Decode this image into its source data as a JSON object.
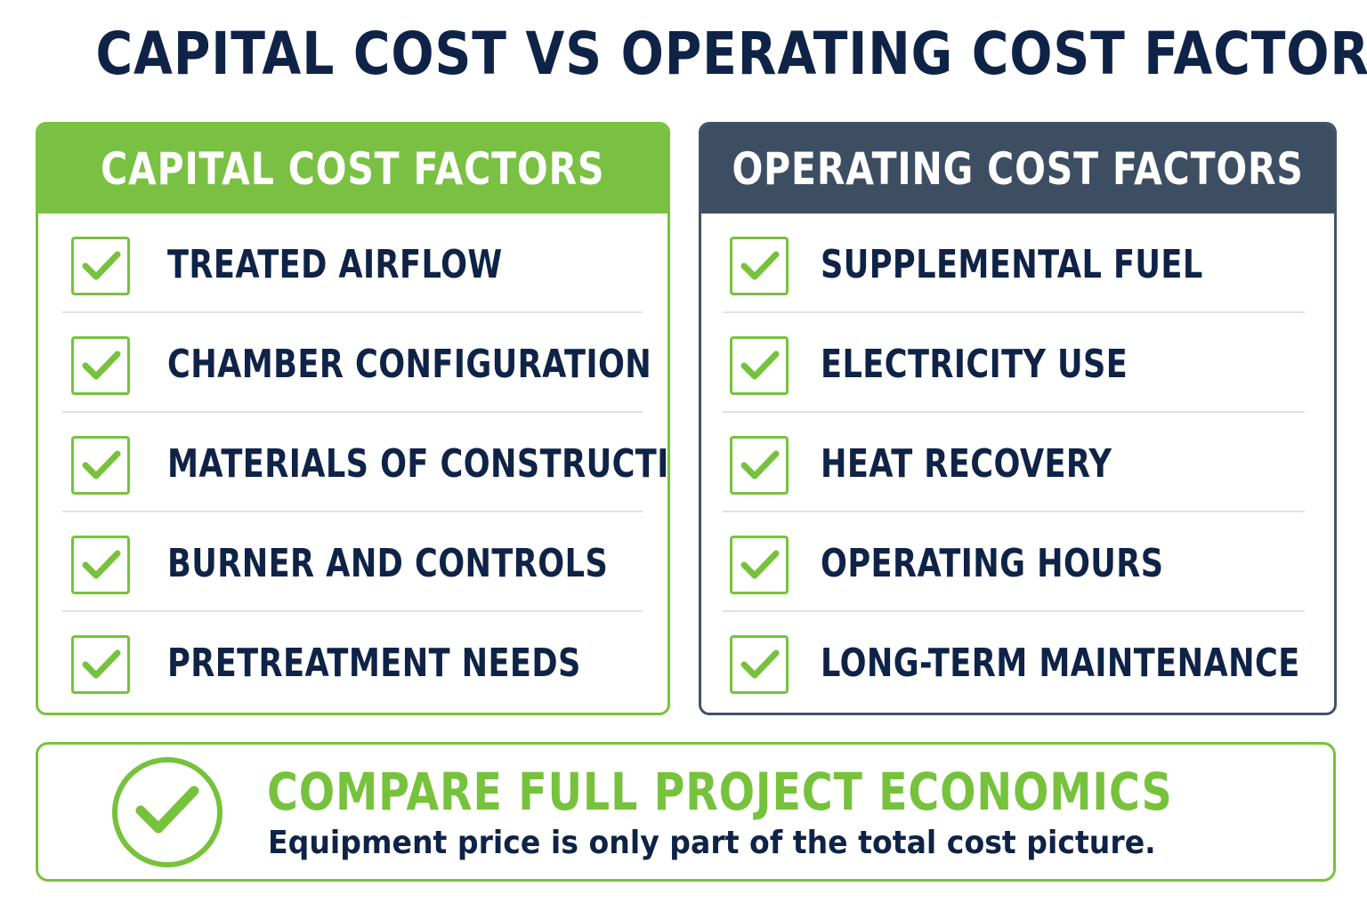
{
  "title": "CAPITAL COST VS OPERATING COST FACTORS",
  "colors": {
    "navy": "#0f2347",
    "green": "#7ac143",
    "slate": "#3d4e62",
    "divider": "#dde2e8"
  },
  "capital": {
    "header": "CAPITAL COST FACTORS",
    "icon": "check-box-icon",
    "items": [
      "TREATED AIRFLOW",
      "CHAMBER CONFIGURATION",
      "MATERIALS OF CONSTRUCTION",
      "BURNER AND CONTROLS",
      "PRETREATMENT NEEDS"
    ]
  },
  "operating": {
    "header": "OPERATING COST FACTORS",
    "icon": "check-box-icon",
    "items": [
      "SUPPLEMENTAL FUEL",
      "ELECTRICITY USE",
      "HEAT RECOVERY",
      "OPERATING HOURS",
      "LONG-TERM MAINTENANCE"
    ]
  },
  "banner": {
    "icon": "check-circle-icon",
    "title": "COMPARE FULL PROJECT ECONOMICS",
    "subtitle": "Equipment price is only part of the total cost picture."
  }
}
